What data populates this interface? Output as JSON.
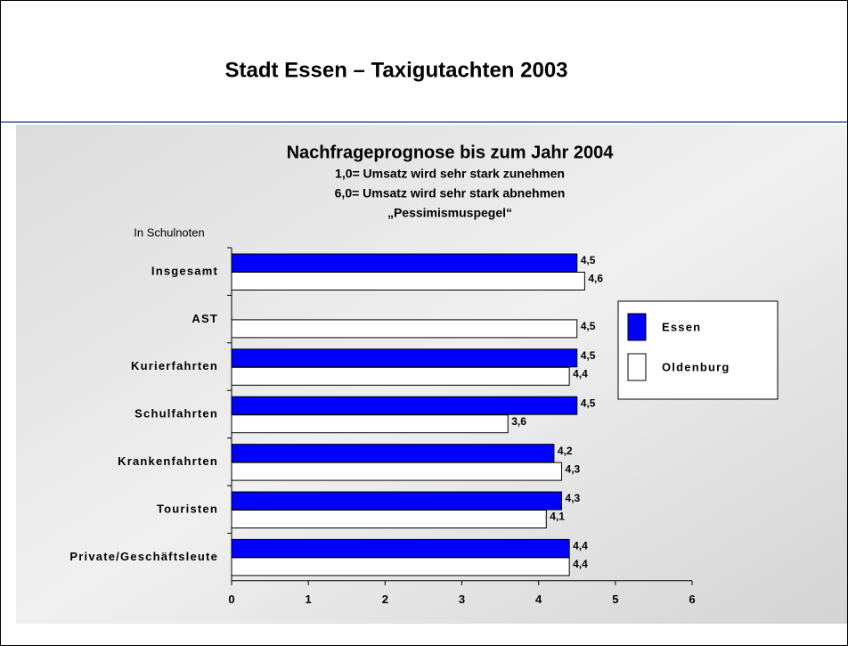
{
  "slide": {
    "title": "Stadt Essen – Taxigutachten 2003"
  },
  "chart_data": {
    "type": "bar",
    "orientation": "horizontal",
    "title": "Nachfrageprognose bis zum Jahr 2004",
    "subtitle": [
      "1,0= Umsatz wird sehr stark zunehmen",
      "6,0= Umsatz wird sehr stark abnehmen",
      "„Pessimismuspegel“"
    ],
    "ylabel": "In Schulnoten",
    "categories": [
      "Insgesamt",
      "AST",
      "Kurierfahrten",
      "Schulfahrten",
      "Krankenfahrten",
      "Touristen",
      "Private/Geschäftsleute"
    ],
    "series": [
      {
        "name": "Essen",
        "color": "#0000ff",
        "values": [
          4.5,
          null,
          4.5,
          4.5,
          4.2,
          4.3,
          4.4
        ],
        "value_labels": [
          "4,5",
          null,
          "4,5",
          "4,5",
          "4,2",
          "4,3",
          "4,4"
        ]
      },
      {
        "name": "Oldenburg",
        "color": "#ffffff",
        "values": [
          4.6,
          4.5,
          4.4,
          3.6,
          4.3,
          4.1,
          4.4
        ],
        "value_labels": [
          "4,6",
          "4,5",
          "4,4",
          "3,6",
          "4,3",
          "4,1",
          "4,4"
        ]
      }
    ],
    "xlim": [
      0,
      6
    ],
    "xticks": [
      0,
      1,
      2,
      3,
      4,
      5,
      6
    ],
    "legend": "right"
  }
}
